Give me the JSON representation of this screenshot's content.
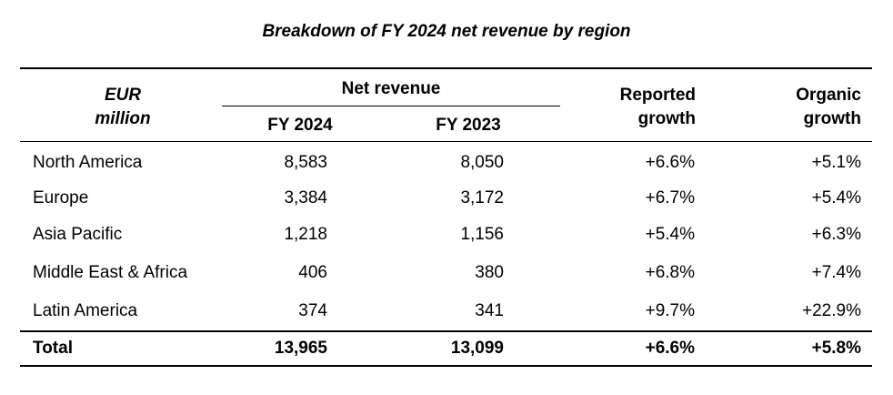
{
  "title": "Breakdown of FY 2024 net revenue by region",
  "header": {
    "unit_line1": "EUR",
    "unit_line2": "million",
    "net_revenue": "Net revenue",
    "fy2024": "FY 2024",
    "fy2023": "FY 2023",
    "reported_line1": "Reported",
    "reported_line2": "growth",
    "organic_line1": "Organic",
    "organic_line2": "growth"
  },
  "rows": [
    {
      "region": "North America",
      "fy2024": "8,583",
      "fy2023": "8,050",
      "reported": "+6.6%",
      "organic": "+5.1%"
    },
    {
      "region": "Europe",
      "fy2024": "3,384",
      "fy2023": "3,172",
      "reported": "+6.7%",
      "organic": "+5.4%"
    },
    {
      "region": "Asia Pacific",
      "fy2024": "1,218",
      "fy2023": "1,156",
      "reported": "+5.4%",
      "organic": "+6.3%"
    },
    {
      "region": "Middle East & Africa",
      "fy2024": "406",
      "fy2023": "380",
      "reported": "+6.8%",
      "organic": "+7.4%"
    },
    {
      "region": "Latin America",
      "fy2024": "374",
      "fy2023": "341",
      "reported": "+9.7%",
      "organic": "+22.9%"
    }
  ],
  "total": {
    "region": "Total",
    "fy2024": "13,965",
    "fy2023": "13,099",
    "reported": "+6.6%",
    "organic": "+5.8%"
  }
}
